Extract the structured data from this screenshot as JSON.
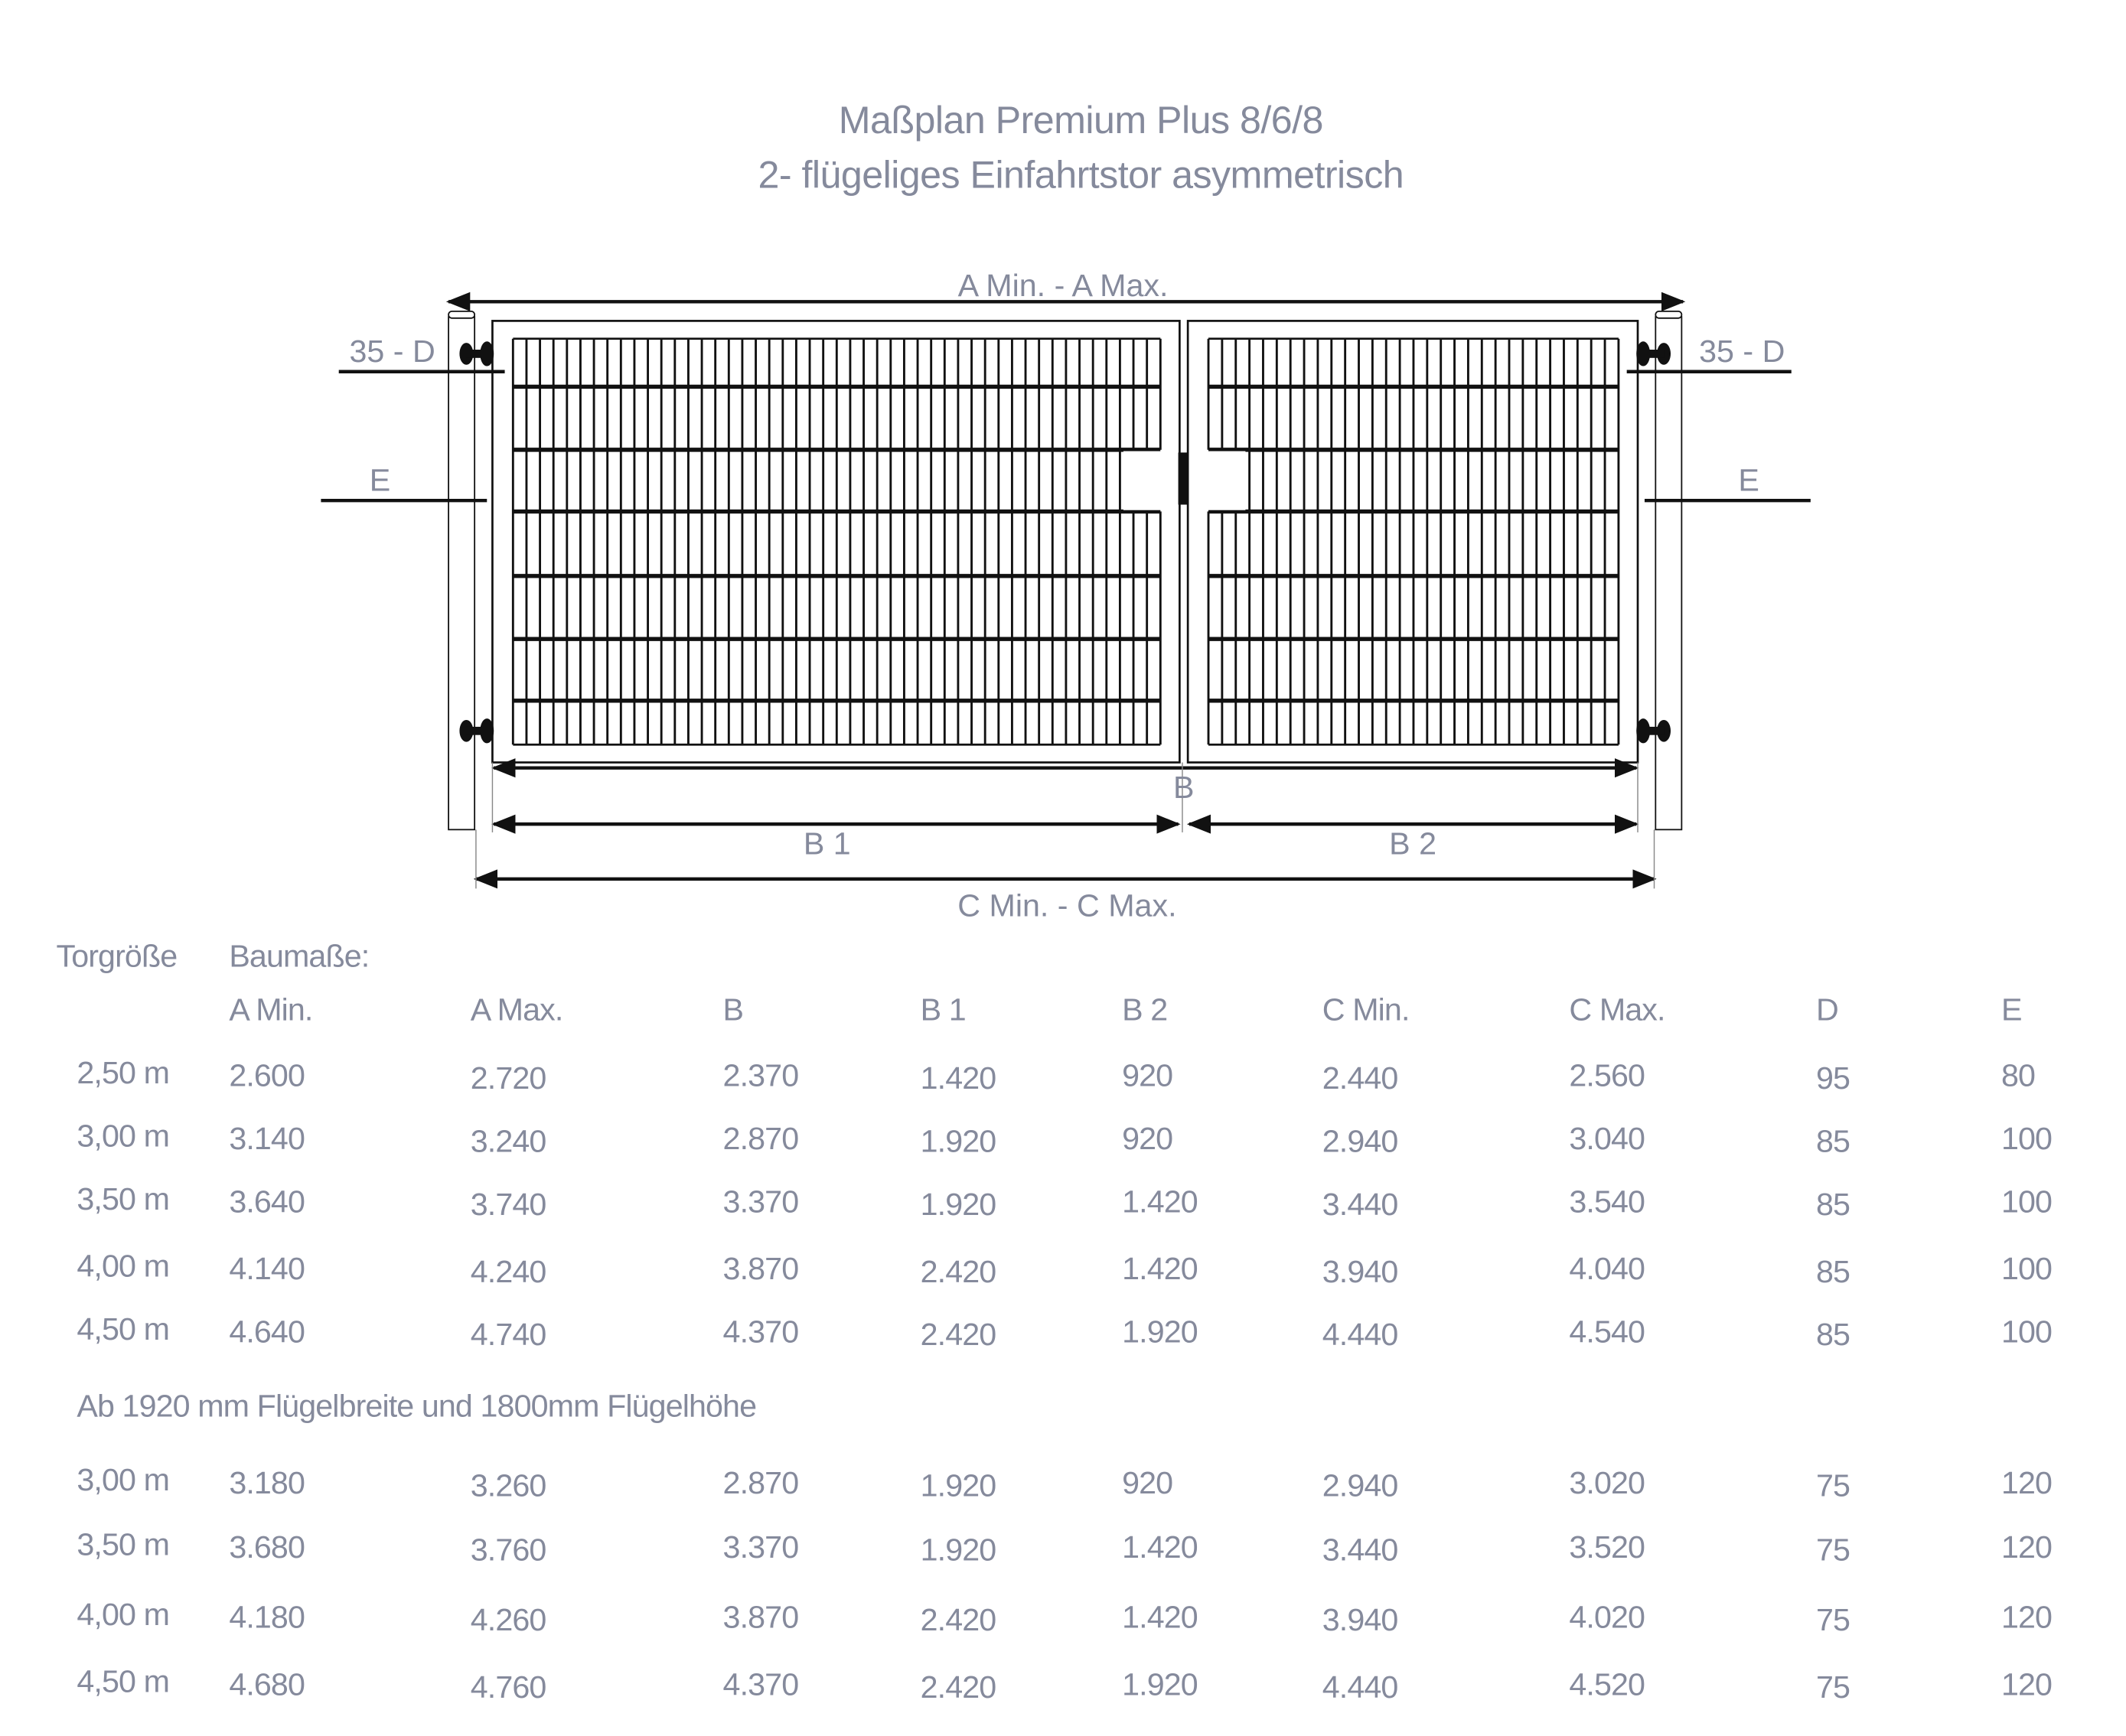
{
  "title": {
    "line1": "Maßplan Premium Plus 8/6/8",
    "line2": "2- flügeliges Einfahrtstor asymmetrisch"
  },
  "drawing": {
    "dim_a": "A Min. - A Max.",
    "dim_d_left": "35 - D",
    "dim_d_right": "35 - D",
    "dim_e_left": "E",
    "dim_e_right": "E",
    "dim_b": "B",
    "dim_b1": "B 1",
    "dim_b2": "B 2",
    "dim_c": "C Min. - C Max.",
    "colors": {
      "text": "#858a9c",
      "lines": "#111111"
    }
  },
  "table": {
    "label_size": "Torgröße",
    "label_dims": "Baumaße:",
    "columns": [
      "A Min.",
      "A Max.",
      "B",
      "B 1",
      "B 2",
      "C Min.",
      "C Max.",
      "D",
      "E"
    ],
    "rows": [
      [
        "2,50 m",
        "2.600",
        "2.720",
        "2.370",
        "1.420",
        "920",
        "2.440",
        "2.560",
        "95",
        "80"
      ],
      [
        "3,00 m",
        "3.140",
        "3.240",
        "2.870",
        "1.920",
        "920",
        "2.940",
        "3.040",
        "85",
        "100"
      ],
      [
        "3,50 m",
        "3.640",
        "3.740",
        "3.370",
        "1.920",
        "1.420",
        "3.440",
        "3.540",
        "85",
        "100"
      ],
      [
        "4,00 m",
        "4.140",
        "4.240",
        "3.870",
        "2.420",
        "1.420",
        "3.940",
        "4.040",
        "85",
        "100"
      ],
      [
        "4,50 m",
        "4.640",
        "4.740",
        "4.370",
        "2.420",
        "1.920",
        "4.440",
        "4.540",
        "85",
        "100"
      ]
    ],
    "note": "Ab 1920 mm Flügelbreite und 1800mm Flügelhöhe",
    "rows2": [
      [
        "3,00 m",
        "3.180",
        "3.260",
        "2.870",
        "1.920",
        "920",
        "2.940",
        "3.020",
        "75",
        "120"
      ],
      [
        "3,50 m",
        "3.680",
        "3.760",
        "3.370",
        "1.920",
        "1.420",
        "3.440",
        "3.520",
        "75",
        "120"
      ],
      [
        "4,00 m",
        "4.180",
        "4.260",
        "3.870",
        "2.420",
        "1.420",
        "3.940",
        "4.020",
        "75",
        "120"
      ],
      [
        "4,50 m",
        "4.680",
        "4.760",
        "4.370",
        "2.420",
        "1.920",
        "4.440",
        "4.520",
        "75",
        "120"
      ]
    ]
  }
}
